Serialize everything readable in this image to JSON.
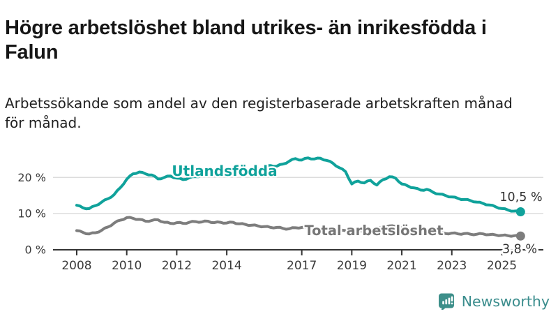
{
  "header": {
    "title_line1": "Högre arbetslöshet bland utrikes- än inrikesfödda i",
    "title_line2": "Falun",
    "subtitle_line1": "Arbetssökande som andel av den registerbaserade arbetskraften månad",
    "subtitle_line2": "för månad."
  },
  "footer": {
    "brand": "Newsworthy",
    "logo_icon": "bar-chart-speech-bubble-icon"
  },
  "colors": {
    "teal_series": "#10a29b",
    "gray_series": "#7d7d7d",
    "gray_label": "#767676",
    "gridline": "#dcdcdc",
    "axis": "#333333",
    "tick_text": "#3a3a3a",
    "value_text": "#333333",
    "brand_teal": "#3b8d8d"
  },
  "chart_data": {
    "type": "line",
    "title": "Högre arbetslöshet bland utrikes- än inrikesfödda i Falun",
    "subtitle": "Arbetssökande som andel av den registerbaserade arbetskraften månad för månad.",
    "x_unit": "year",
    "y_unit": "%",
    "x_start": 2008,
    "x_step_years": 0.25,
    "xlim": [
      2007.0,
      2026.7
    ],
    "ylim": [
      0,
      27
    ],
    "grid": "horizontal",
    "legend_position": "inline-labels",
    "x_ticks": [
      {
        "v": 2008,
        "label": "2008"
      },
      {
        "v": 2010,
        "label": "2010"
      },
      {
        "v": 2012,
        "label": "2012"
      },
      {
        "v": 2014,
        "label": "2014"
      },
      {
        "v": 2017,
        "label": "2017"
      },
      {
        "v": 2019,
        "label": "2019"
      },
      {
        "v": 2021,
        "label": "2021"
      },
      {
        "v": 2023,
        "label": "2023"
      },
      {
        "v": 2025,
        "label": "2025"
      }
    ],
    "y_ticks": [
      {
        "v": 0,
        "label": "0 %"
      },
      {
        "v": 10,
        "label": "10 %"
      },
      {
        "v": 20,
        "label": "20 %"
      }
    ],
    "series": [
      {
        "name": "Utlandsfödda",
        "slug": "utlandsfodda",
        "color": "#10a29b",
        "end_label": "10,5 %",
        "values": [
          12.3,
          11.6,
          11.4,
          12.2,
          13.2,
          14.1,
          15.3,
          17.2,
          19.5,
          21.0,
          21.5,
          21.0,
          20.7,
          19.6,
          20.0,
          20.4,
          19.8,
          19.4,
          19.9,
          20.2,
          20.5,
          20.9,
          20.6,
          20.8,
          21.0,
          21.5,
          21.9,
          21.6,
          21.8,
          22.4,
          22.9,
          23.3,
          23.1,
          23.7,
          24.5,
          25.2,
          24.8,
          25.4,
          25.1,
          25.3,
          24.7,
          23.9,
          22.7,
          21.6,
          18.2,
          19.0,
          18.5,
          19.2,
          17.9,
          19.4,
          20.2,
          19.8,
          18.2,
          17.6,
          17.1,
          16.5,
          16.7,
          15.9,
          15.4,
          15.0,
          14.6,
          14.2,
          13.9,
          13.6,
          13.2,
          12.8,
          12.4,
          11.9,
          11.4,
          11.0,
          10.7,
          10.5
        ]
      },
      {
        "name": "Total arbetslöshet",
        "slug": "total-arbetsloshet",
        "color": "#7d7d7d",
        "end_label": "3,8 %",
        "values": [
          5.3,
          4.8,
          4.4,
          4.7,
          5.4,
          6.3,
          7.4,
          8.2,
          8.9,
          8.7,
          8.4,
          7.9,
          8.1,
          8.3,
          7.6,
          7.3,
          7.5,
          7.3,
          7.6,
          7.8,
          7.7,
          7.9,
          7.5,
          7.6,
          7.4,
          7.6,
          7.2,
          7.0,
          6.8,
          6.6,
          6.4,
          6.2,
          6.2,
          5.9,
          5.8,
          6.1,
          6.2,
          6.0,
          5.8,
          5.7,
          5.6,
          5.4,
          5.2,
          5.3,
          5.2,
          5.3,
          5.4,
          5.5,
          5.6,
          6.3,
          6.6,
          6.4,
          6.2,
          5.9,
          5.6,
          5.3,
          5.0,
          4.8,
          4.6,
          4.5,
          4.6,
          4.4,
          4.5,
          4.3,
          4.3,
          4.4,
          4.2,
          4.1,
          4.0,
          3.9,
          3.9,
          3.8
        ]
      }
    ]
  }
}
